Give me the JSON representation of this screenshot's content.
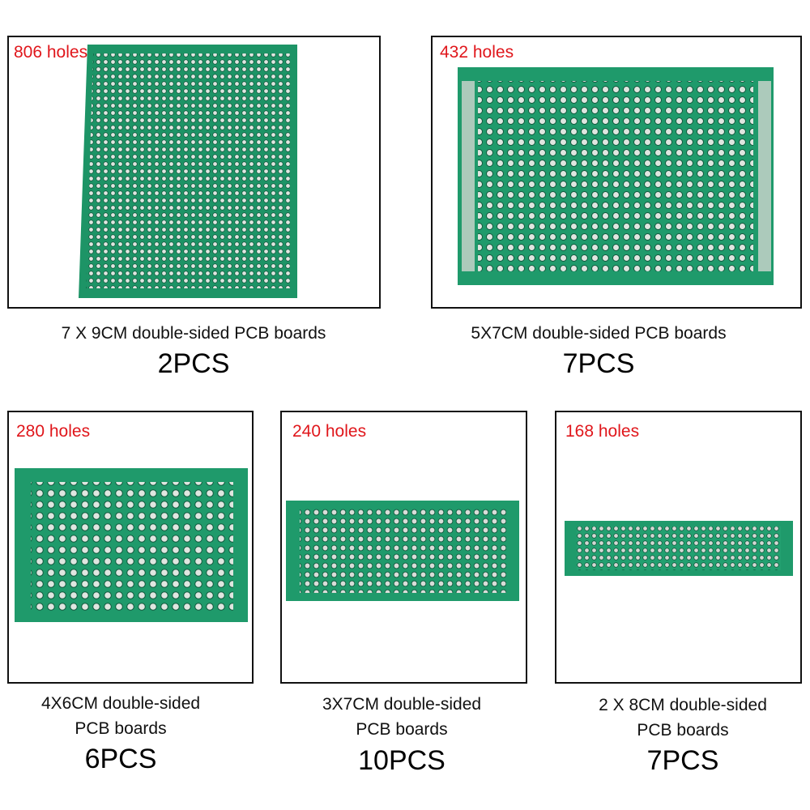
{
  "panels": [
    {
      "holes": "806 holes",
      "caption": [
        "7 X 9CM double-sided PCB boards"
      ],
      "quantity": "2PCS"
    },
    {
      "holes": "432 holes",
      "caption": [
        "5X7CM double-sided PCB boards"
      ],
      "quantity": "7PCS"
    },
    {
      "holes": "280 holes",
      "caption": [
        "4X6CM double-sided",
        "PCB boards"
      ],
      "quantity": "6PCS"
    },
    {
      "holes": "240 holes",
      "caption": [
        "3X7CM double-sided",
        "PCB boards"
      ],
      "quantity": "10PCS"
    },
    {
      "holes": "168 holes",
      "caption": [
        "2 X 8CM double-sided",
        "PCB boards"
      ],
      "quantity": "7PCS"
    }
  ]
}
